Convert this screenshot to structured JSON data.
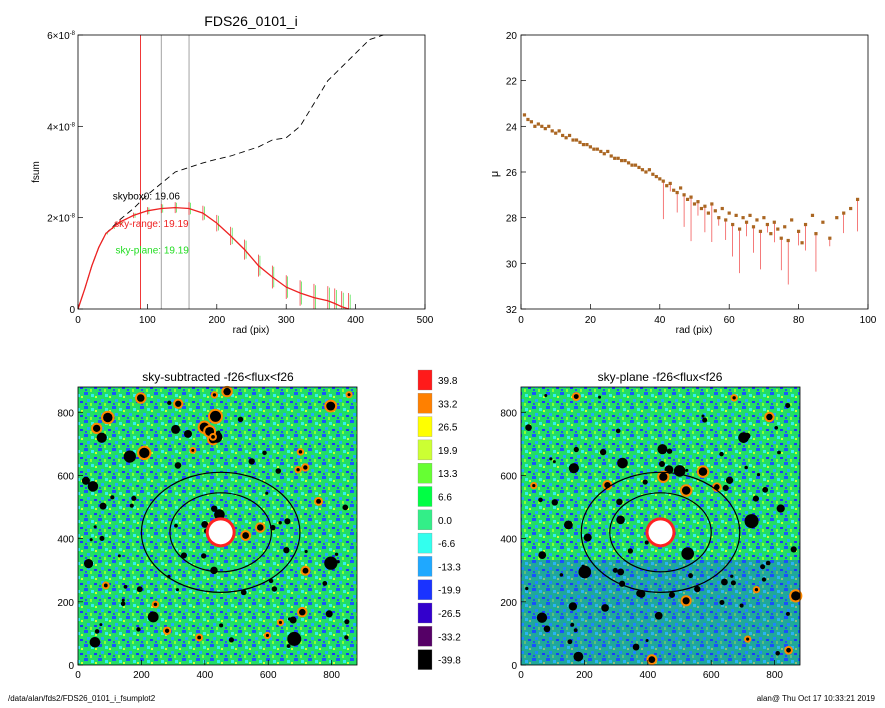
{
  "footer": {
    "left": "/data/alan/fds2/FDS26_0101_i_fsumplot2",
    "right": "alan@  Thu Oct 17 10:33:21 2019"
  },
  "colors": {
    "dash": "#000000",
    "sky_range": "#ee2222",
    "sky_plane": "#22dd22",
    "grey_line": "#999999",
    "skybox_label": "#000000"
  },
  "chart_data": [
    {
      "type": "line",
      "title": "FDS26_0101_i",
      "xlabel": "rad (pix)",
      "ylabel": "fsum",
      "xlim": [
        0,
        500
      ],
      "ylim": [
        0,
        6e-08
      ],
      "x_ticks": [
        0,
        100,
        200,
        300,
        400,
        500
      ],
      "y_ticks": [
        {
          "value": 0,
          "mant": "0",
          "exp": ""
        },
        {
          "value": 2e-08,
          "mant": "2×10",
          "exp": "-8"
        },
        {
          "value": 4e-08,
          "mant": "4×10",
          "exp": "-8"
        },
        {
          "value": 6e-08,
          "mant": "6×10",
          "exp": "-8"
        }
      ],
      "vlines": [
        {
          "x": 90,
          "color": "#ee2222"
        },
        {
          "x": 120,
          "color": "#999999"
        },
        {
          "x": 160,
          "color": "#999999"
        }
      ],
      "annotations": [
        {
          "text": "skybox0: 19.06",
          "color": "#000000",
          "x": 50,
          "y": 2.4e-08
        },
        {
          "text": "sky-range: 19.19",
          "color": "#ee2222",
          "x": 52,
          "y": 1.8e-08
        },
        {
          "text": "sky-plane: 19.19",
          "color": "#22dd22",
          "x": 54,
          "y": 1.22e-08
        }
      ],
      "series": [
        {
          "style": "dashed",
          "x": [
            0,
            10,
            20,
            30,
            40,
            50,
            60,
            80,
            100,
            120,
            140,
            160,
            180,
            200,
            220,
            240,
            260,
            280,
            300,
            320,
            340,
            360,
            380,
            400,
            420,
            440
          ],
          "values": [
            0,
            4.5e-09,
            9.5e-09,
            1.35e-08,
            1.65e-08,
            1.8e-08,
            1.95e-08,
            2.2e-08,
            2.5e-08,
            2.75e-08,
            3e-08,
            3.1e-08,
            3.2e-08,
            3.28e-08,
            3.35e-08,
            3.45e-08,
            3.55e-08,
            3.7e-08,
            3.75e-08,
            4e-08,
            4.5e-08,
            5e-08,
            5.3e-08,
            5.6e-08,
            5.9e-08,
            6e-08
          ]
        },
        {
          "style": "solid-error",
          "x": [
            0,
            10,
            20,
            30,
            40,
            50,
            60,
            80,
            100,
            120,
            140,
            160,
            180,
            200,
            220,
            240,
            260,
            280,
            300,
            320,
            340,
            360,
            370,
            380,
            390
          ],
          "values": [
            0,
            4.5e-09,
            9.5e-09,
            1.35e-08,
            1.65e-08,
            1.78e-08,
            1.9e-08,
            2.05e-08,
            2.15e-08,
            2.2e-08,
            2.22e-08,
            2.2e-08,
            2.1e-08,
            1.88e-08,
            1.6e-08,
            1.3e-08,
            9.5e-09,
            7e-09,
            4.8e-09,
            3.5e-09,
            2.5e-09,
            1.8e-09,
            1.2e-09,
            5e-10,
            0
          ],
          "errors": [
            0,
            0,
            0,
            0,
            2e-10,
            3e-10,
            4e-10,
            6e-10,
            8e-10,
            1e-09,
            1.2e-09,
            1.4e-09,
            1.6e-09,
            1.8e-09,
            2e-09,
            2.2e-09,
            2.4e-09,
            2.5e-09,
            2.6e-09,
            2.8e-09,
            3e-09,
            3.2e-09,
            3.3e-09,
            3.4e-09,
            3.5e-09
          ]
        }
      ]
    },
    {
      "type": "scatter",
      "title": "",
      "xlabel": "rad (pix)",
      "ylabel": "μ",
      "xlim": [
        0,
        100
      ],
      "ylim": [
        32,
        20
      ],
      "x_ticks": [
        0,
        20,
        40,
        60,
        80,
        100
      ],
      "y_ticks": [
        20,
        22,
        24,
        26,
        28,
        30,
        32
      ],
      "points": [
        {
          "x": 1,
          "y": 23.5
        },
        {
          "x": 2,
          "y": 23.7
        },
        {
          "x": 3,
          "y": 23.8
        },
        {
          "x": 4,
          "y": 24.0
        },
        {
          "x": 5,
          "y": 23.9
        },
        {
          "x": 6,
          "y": 24.0
        },
        {
          "x": 7,
          "y": 24.1
        },
        {
          "x": 8,
          "y": 24.0
        },
        {
          "x": 9,
          "y": 24.2
        },
        {
          "x": 10,
          "y": 24.3
        },
        {
          "x": 11,
          "y": 24.2
        },
        {
          "x": 12,
          "y": 24.4
        },
        {
          "x": 13,
          "y": 24.5
        },
        {
          "x": 14,
          "y": 24.4
        },
        {
          "x": 15,
          "y": 24.6
        },
        {
          "x": 16,
          "y": 24.6
        },
        {
          "x": 17,
          "y": 24.7
        },
        {
          "x": 18,
          "y": 24.8
        },
        {
          "x": 19,
          "y": 24.8
        },
        {
          "x": 20,
          "y": 24.9
        },
        {
          "x": 21,
          "y": 25.0
        },
        {
          "x": 22,
          "y": 25.0
        },
        {
          "x": 23,
          "y": 25.1
        },
        {
          "x": 24,
          "y": 25.2
        },
        {
          "x": 25,
          "y": 25.1
        },
        {
          "x": 26,
          "y": 25.3
        },
        {
          "x": 27,
          "y": 25.4
        },
        {
          "x": 28,
          "y": 25.4
        },
        {
          "x": 29,
          "y": 25.5
        },
        {
          "x": 30,
          "y": 25.5
        },
        {
          "x": 31,
          "y": 25.6
        },
        {
          "x": 32,
          "y": 25.7
        },
        {
          "x": 33,
          "y": 25.7
        },
        {
          "x": 34,
          "y": 25.8
        },
        {
          "x": 35,
          "y": 25.9
        },
        {
          "x": 36,
          "y": 26.0
        },
        {
          "x": 37,
          "y": 25.9
        },
        {
          "x": 38,
          "y": 26.1
        },
        {
          "x": 39,
          "y": 26.2
        },
        {
          "x": 40,
          "y": 26.3
        },
        {
          "x": 41,
          "y": 26.4
        },
        {
          "x": 42,
          "y": 26.6
        },
        {
          "x": 43,
          "y": 26.5
        },
        {
          "x": 44,
          "y": 26.8
        },
        {
          "x": 45,
          "y": 26.9
        },
        {
          "x": 46,
          "y": 26.7
        },
        {
          "x": 47,
          "y": 27.0
        },
        {
          "x": 48,
          "y": 27.2
        },
        {
          "x": 49,
          "y": 27.1
        },
        {
          "x": 50,
          "y": 27.4
        },
        {
          "x": 51,
          "y": 27.3
        },
        {
          "x": 52,
          "y": 27.6
        },
        {
          "x": 53,
          "y": 27.5
        },
        {
          "x": 54,
          "y": 27.8
        },
        {
          "x": 55,
          "y": 27.4
        },
        {
          "x": 56,
          "y": 27.7
        },
        {
          "x": 57,
          "y": 28.0
        },
        {
          "x": 58,
          "y": 27.6
        },
        {
          "x": 59,
          "y": 28.1
        },
        {
          "x": 60,
          "y": 27.8
        },
        {
          "x": 61,
          "y": 28.3
        },
        {
          "x": 62,
          "y": 27.9
        },
        {
          "x": 63,
          "y": 28.5
        },
        {
          "x": 64,
          "y": 28.0
        },
        {
          "x": 65,
          "y": 28.2
        },
        {
          "x": 66,
          "y": 27.9
        },
        {
          "x": 67,
          "y": 28.4
        },
        {
          "x": 68,
          "y": 28.1
        },
        {
          "x": 69,
          "y": 28.6
        },
        {
          "x": 70,
          "y": 28.0
        },
        {
          "x": 71,
          "y": 28.3
        },
        {
          "x": 72,
          "y": 28.7
        },
        {
          "x": 73,
          "y": 28.2
        },
        {
          "x": 74,
          "y": 28.5
        },
        {
          "x": 75,
          "y": 28.9
        },
        {
          "x": 76,
          "y": 28.4
        },
        {
          "x": 77,
          "y": 29.0
        },
        {
          "x": 78,
          "y": 28.1
        },
        {
          "x": 80,
          "y": 28.6
        },
        {
          "x": 81,
          "y": 29.1
        },
        {
          "x": 82,
          "y": 28.3
        },
        {
          "x": 84,
          "y": 27.9
        },
        {
          "x": 85,
          "y": 28.7
        },
        {
          "x": 87,
          "y": 28.2
        },
        {
          "x": 89,
          "y": 28.9
        },
        {
          "x": 91,
          "y": 28.0
        },
        {
          "x": 93,
          "y": 27.8
        },
        {
          "x": 95,
          "y": 27.6
        },
        {
          "x": 97,
          "y": 27.2
        }
      ]
    },
    {
      "type": "heatmap",
      "title": "sky-subtracted -f26<flux<f26",
      "xlim": [
        0,
        880
      ],
      "ylim": [
        0,
        880
      ],
      "x_ticks": [
        0,
        200,
        400,
        600,
        800
      ],
      "y_ticks": [
        0,
        200,
        400,
        600,
        800
      ],
      "center": [
        450,
        420
      ],
      "ellipses": [
        {
          "a": 250,
          "b": 190
        },
        {
          "a": 160,
          "b": 125
        }
      ]
    },
    {
      "type": "heatmap",
      "title": "sky-plane -f26<flux<f26",
      "xlim": [
        0,
        880
      ],
      "ylim": [
        0,
        880
      ],
      "x_ticks": [
        0,
        200,
        400,
        600,
        800
      ],
      "y_ticks": [
        0,
        200,
        400,
        600,
        800
      ],
      "center": [
        440,
        420
      ],
      "ellipses": [
        {
          "a": 250,
          "b": 190
        },
        {
          "a": 160,
          "b": 125
        }
      ]
    }
  ],
  "colorbar": {
    "labels": [
      "39.8",
      "33.2",
      "26.5",
      "19.9",
      "13.3",
      "6.6",
      "0.0",
      "-6.6",
      "-13.3",
      "-19.9",
      "-26.5",
      "-33.2",
      "-39.8"
    ],
    "colors": [
      "#ff1a1a",
      "#ff8000",
      "#ffff00",
      "#ccff33",
      "#66ff33",
      "#00ff44",
      "#33ee88",
      "#33ffee",
      "#1fa8ff",
      "#1a33ff",
      "#3300cc",
      "#550066",
      "#000000"
    ]
  }
}
